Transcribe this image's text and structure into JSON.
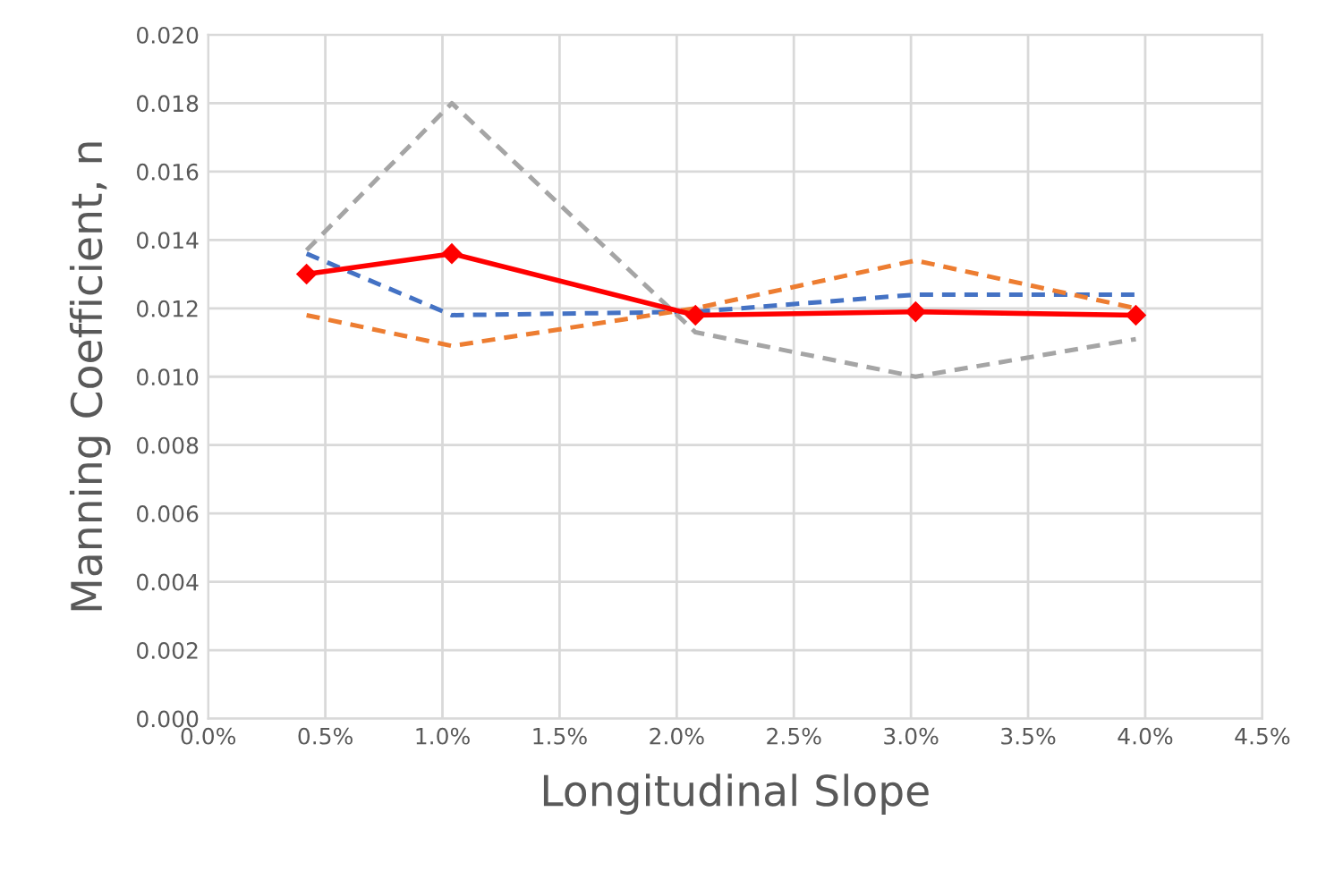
{
  "chart_data": {
    "type": "line",
    "xlabel": "Longitudinal Slope",
    "ylabel": "Manning Coefficient, n",
    "x": [
      0.42,
      1.04,
      2.08,
      3.02,
      3.96
    ],
    "series": [
      {
        "color": "#4472c4",
        "values": [
          0.0136,
          0.0118,
          0.0119,
          0.0124,
          0.0124
        ],
        "line_style": "dashed",
        "marker": "none"
      },
      {
        "color": "#ed7d31",
        "values": [
          0.0118,
          0.0109,
          0.012,
          0.0134,
          0.012
        ],
        "line_style": "dashed",
        "marker": "none"
      },
      {
        "color": "#a5a5a5",
        "values": [
          0.0137,
          0.018,
          0.0113,
          0.01,
          0.0111
        ],
        "line_style": "dashed",
        "marker": "none"
      },
      {
        "color": "#ff0000",
        "values": [
          0.013,
          0.0136,
          0.0118,
          0.0119,
          0.0118
        ],
        "line_style": "solid",
        "marker": "diamond"
      }
    ],
    "xlim": [
      0,
      4.5
    ],
    "ylim": [
      0,
      0.02
    ],
    "xticks": [
      {
        "value": 0,
        "label": "0.0%"
      },
      {
        "value": 0.5,
        "label": "0.5%"
      },
      {
        "value": 1,
        "label": "1.0%"
      },
      {
        "value": 1.5,
        "label": "1.5%"
      },
      {
        "value": 2,
        "label": "2.0%"
      },
      {
        "value": 2.5,
        "label": "2.5%"
      },
      {
        "value": 3,
        "label": "3.0%"
      },
      {
        "value": 3.5,
        "label": "3.5%"
      },
      {
        "value": 4,
        "label": "4.0%"
      },
      {
        "value": 4.5,
        "label": "4.5%"
      }
    ],
    "yticks": [
      {
        "value": 0,
        "label": "0.000"
      },
      {
        "value": 0.002,
        "label": "0.002"
      },
      {
        "value": 0.004,
        "label": "0.004"
      },
      {
        "value": 0.006,
        "label": "0.006"
      },
      {
        "value": 0.008,
        "label": "0.008"
      },
      {
        "value": 0.01,
        "label": "0.010"
      },
      {
        "value": 0.012,
        "label": "0.012"
      },
      {
        "value": 0.014,
        "label": "0.014"
      },
      {
        "value": 0.016,
        "label": "0.016"
      },
      {
        "value": 0.018,
        "label": "0.018"
      },
      {
        "value": 0.02,
        "label": "0.020"
      }
    ],
    "grid": true
  }
}
